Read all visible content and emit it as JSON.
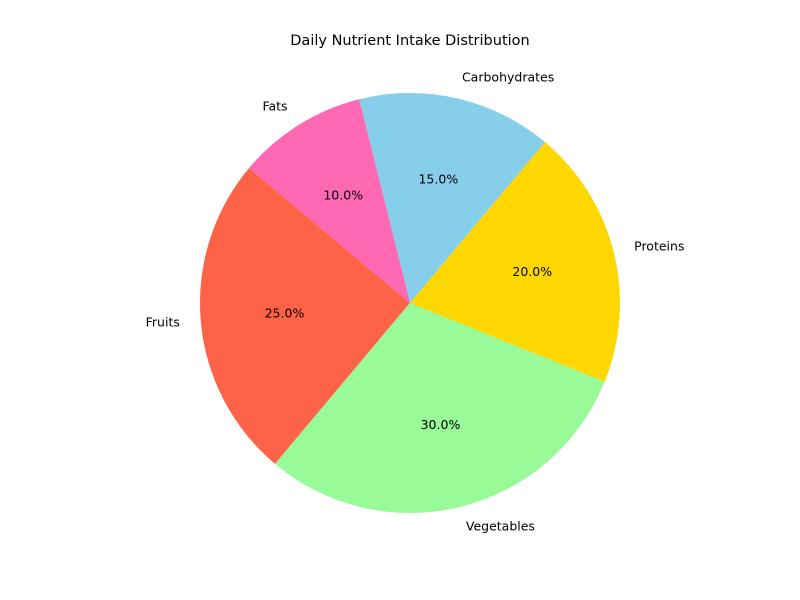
{
  "chart_data": {
    "type": "pie",
    "title": "Daily Nutrient Intake Distribution",
    "categories": [
      "Fruits",
      "Vegetables",
      "Proteins",
      "Carbohydrates",
      "Fats"
    ],
    "values": [
      25,
      30,
      20,
      15,
      10
    ],
    "percent_labels": [
      "25.0%",
      "30.0%",
      "20.0%",
      "15.0%",
      "10.0%"
    ],
    "colors": [
      "#ff6347",
      "#98fb98",
      "#ffd700",
      "#87ceeb",
      "#ff69b4"
    ],
    "start_angle_deg": 140,
    "direction": "counterclockwise",
    "legend": "none"
  }
}
